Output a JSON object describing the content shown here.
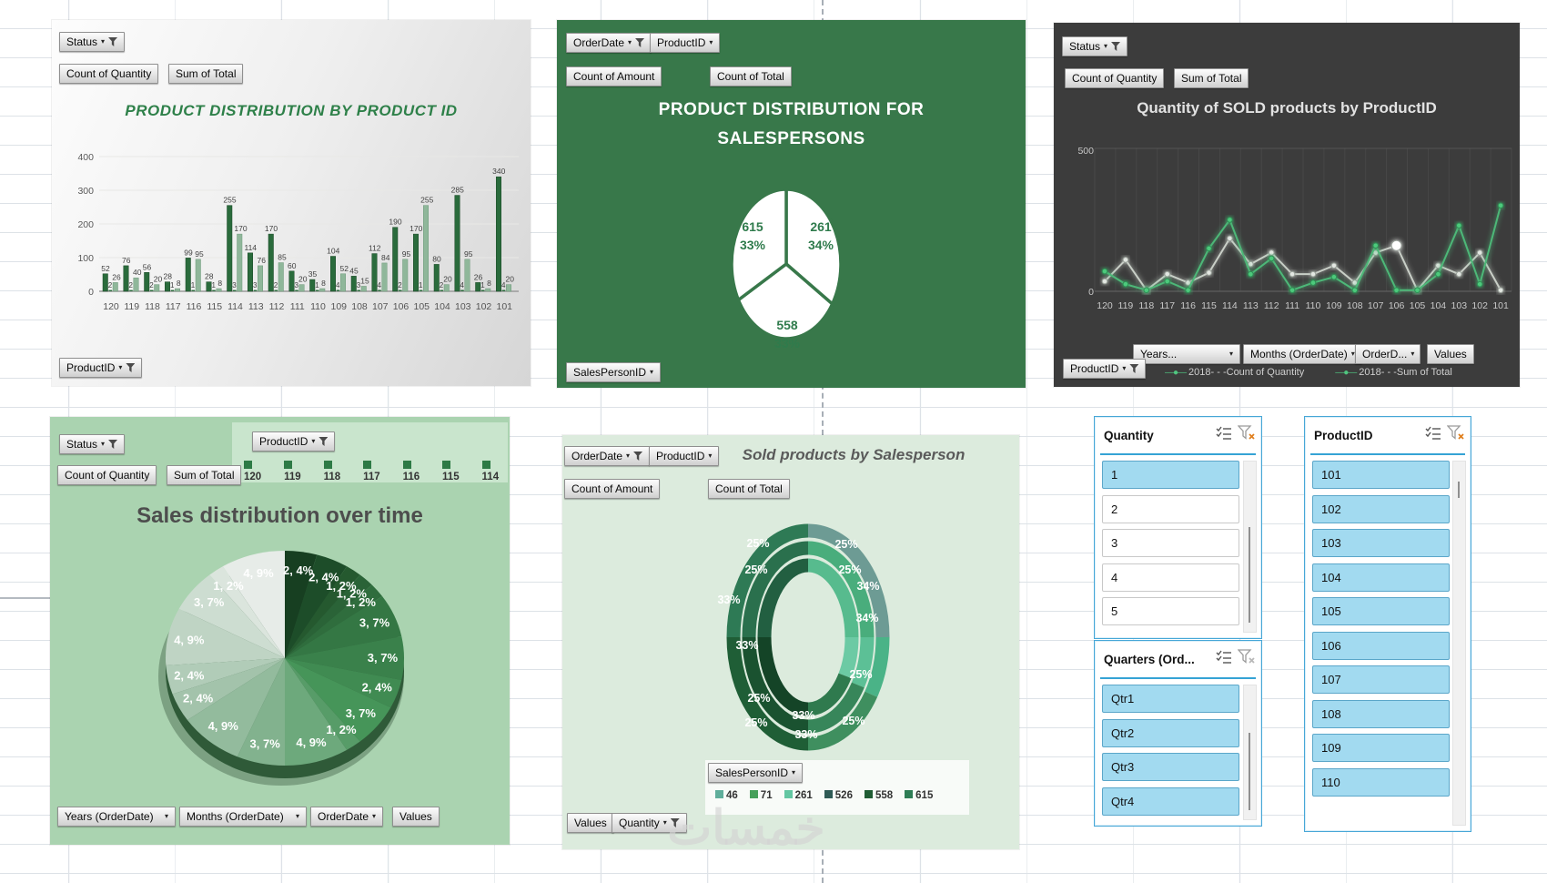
{
  "watermark": "خمسات",
  "charts": {
    "bar": {
      "filter_button": "Status",
      "value_buttons": [
        "Count of Quantity",
        "Sum of Total"
      ],
      "axis_button": "ProductID",
      "title": "PRODUCT DISTRIBUTION BY PRODUCT ID"
    },
    "pie_sales": {
      "filter_buttons": [
        "OrderDate",
        "ProductID"
      ],
      "value_buttons": [
        "Count of Amount",
        "Count of Total"
      ],
      "title_line1": "PRODUCT DISTRIBUTION FOR",
      "title_line2": "SALESPERSONS",
      "axis_button": "SalesPersonID"
    },
    "line": {
      "filter_button": "Status",
      "value_buttons": [
        "Count of Quantity",
        "Sum of Total"
      ],
      "title": "Quantity of SOLD products by ProductID",
      "field_buttons": [
        "Years...",
        "Months (OrderDate)",
        "OrderD...",
        "Values"
      ],
      "axis_button": "ProductID",
      "legend": [
        "2018- - -Count of Quantity",
        "2018- - -Sum of Total"
      ]
    },
    "pie_time": {
      "filter_button": "Status",
      "value_buttons": [
        "Count of Quantity",
        "Sum of Total"
      ],
      "legend_button": "ProductID",
      "legend_items": [
        "120",
        "119",
        "118",
        "117",
        "116",
        "115",
        "114"
      ],
      "legend_color": "#2d7a45",
      "title": "Sales distribution over time",
      "field_buttons": [
        "Years (OrderDate)",
        "Months (OrderDate)",
        "OrderDate",
        "Values"
      ]
    },
    "donut": {
      "filter_buttons": [
        "OrderDate",
        "ProductID"
      ],
      "value_buttons": [
        "Count of Amount",
        "Count of Total"
      ],
      "title": "Sold products by Salesperson",
      "legend_button": "SalesPersonID",
      "bottom_buttons": [
        "Values",
        "Quantity"
      ]
    }
  },
  "chart_data": [
    {
      "id": "product-distribution-bar",
      "type": "bar",
      "title": "PRODUCT DISTRIBUTION BY PRODUCT ID",
      "categories": [
        "120",
        "119",
        "118",
        "117",
        "116",
        "115",
        "114",
        "113",
        "112",
        "111",
        "110",
        "109",
        "108",
        "107",
        "106",
        "105",
        "104",
        "103",
        "102",
        "101"
      ],
      "yticks": [
        0,
        100,
        200,
        300,
        400
      ],
      "ylim": [
        0,
        400
      ],
      "series": [
        {
          "name": "Sum of Total (dark)",
          "color": "#2a6b3c",
          "values": [
            52,
            76,
            56,
            28,
            99,
            28,
            255,
            114,
            170,
            60,
            35,
            104,
            45,
            112,
            190,
            170,
            80,
            285,
            26,
            340
          ]
        },
        {
          "name": "Sum of Total (light)",
          "color": "#8fb79a",
          "values": [
            26,
            40,
            20,
            8,
            95,
            8,
            170,
            76,
            85,
            20,
            8,
            52,
            15,
            84,
            95,
            255,
            20,
            95,
            8,
            20
          ]
        },
        {
          "name": "Count of Quantity",
          "color": "#2a6b3c",
          "values": [
            2,
            2,
            2,
            1,
            1,
            1,
            3,
            3,
            2,
            3,
            1,
            4,
            3,
            4,
            2,
            1,
            2,
            4,
            1,
            4
          ]
        }
      ]
    },
    {
      "id": "salespersons-pie",
      "type": "pie",
      "title": "PRODUCT DISTRIBUTION FOR SALESPERSONS",
      "slices": [
        {
          "value": "261",
          "pct": "34%",
          "x": 290,
          "y": 232
        },
        {
          "value": "558",
          "pct": "33%",
          "x": 253,
          "y": 340
        },
        {
          "value": "615",
          "pct": "33%",
          "x": 215,
          "y": 232
        }
      ],
      "fractions": [
        0.34,
        0.33,
        0.33
      ],
      "fill": "#ffffff",
      "label_color": "#2f7b4c"
    },
    {
      "id": "sold-quantity-line",
      "type": "line",
      "title": "Quantity of SOLD products by ProductID",
      "categories": [
        "120",
        "119",
        "118",
        "117",
        "116",
        "115",
        "114",
        "113",
        "112",
        "111",
        "110",
        "109",
        "108",
        "107",
        "106",
        "105",
        "104",
        "103",
        "102",
        "101"
      ],
      "ylim": [
        0,
        500
      ],
      "yticks": [
        0,
        500
      ],
      "series": [
        {
          "name": "2018- - -Count of Quantity",
          "color": "#4db878",
          "values": [
            70,
            25,
            4,
            35,
            4,
            150,
            250,
            60,
            115,
            4,
            30,
            50,
            4,
            160,
            4,
            4,
            60,
            230,
            25,
            300
          ]
        },
        {
          "name": "2018- - -Sum of Total",
          "color": "#c9cfc7",
          "values": [
            35,
            110,
            4,
            60,
            30,
            65,
            185,
            95,
            135,
            60,
            60,
            90,
            30,
            135,
            160,
            4,
            90,
            60,
            135,
            4
          ]
        }
      ],
      "highlight_index": 14
    },
    {
      "id": "sales-over-time-pie",
      "type": "pie",
      "title": "Sales distribution over time",
      "total": 46,
      "slices": [
        {
          "label": "2, 4%",
          "value": 2,
          "color": "#173f21"
        },
        {
          "label": "2, 4%",
          "value": 2,
          "color": "#1d4d29"
        },
        {
          "label": "1, 2%",
          "value": 1,
          "color": "#25592f"
        },
        {
          "label": "1, 2%",
          "value": 1,
          "color": "#2a6337"
        },
        {
          "label": "1, 2%",
          "value": 1,
          "color": "#2f6d3d"
        },
        {
          "label": "3, 7%",
          "value": 3,
          "color": "#347744"
        },
        {
          "label": "3, 7%",
          "value": 3,
          "color": "#3a814b"
        },
        {
          "label": "2, 4%",
          "value": 2,
          "color": "#408b52"
        },
        {
          "label": "3, 7%",
          "value": 3,
          "color": "#469559"
        },
        {
          "label": "1, 2%",
          "value": 1,
          "color": "#579c68"
        },
        {
          "label": "4, 9%",
          "value": 4,
          "color": "#6da97c"
        },
        {
          "label": "3, 7%",
          "value": 3,
          "color": "#82b28e"
        },
        {
          "label": "4, 9%",
          "value": 4,
          "color": "#93bb9d"
        },
        {
          "label": "2, 4%",
          "value": 2,
          "color": "#a3c3ab"
        },
        {
          "label": "2, 4%",
          "value": 2,
          "color": "#b1ccb8"
        },
        {
          "label": "4, 9%",
          "value": 4,
          "color": "#bfd4c4"
        },
        {
          "label": "3, 7%",
          "value": 3,
          "color": "#cdddd1"
        },
        {
          "label": "1, 2%",
          "value": 1,
          "color": "#dbe5dd"
        },
        {
          "label": "4, 9%",
          "value": 4,
          "color": "#e7ece8"
        }
      ]
    },
    {
      "id": "sold-by-salesperson-donut",
      "type": "doughnut",
      "title": "Sold products by Salesperson",
      "legend": [
        {
          "label": "46",
          "color": "#5fae9b"
        },
        {
          "label": "71",
          "color": "#46a05a"
        },
        {
          "label": "261",
          "color": "#63c6a2"
        },
        {
          "label": "526",
          "color": "#2e5a55"
        },
        {
          "label": "558",
          "color": "#1f5c33"
        },
        {
          "label": "615",
          "color": "#2e7d55"
        }
      ],
      "rings": [
        {
          "segments": [
            {
              "pct": 25,
              "color": "#6d9b94"
            },
            {
              "pct": 9,
              "color": "#4ab387"
            },
            {
              "pct": 16,
              "color": "#3f8f5f"
            },
            {
              "pct": 25,
              "color": "#1f5e36"
            },
            {
              "pct": 25,
              "color": "#2e7a55"
            }
          ]
        },
        {
          "segments": [
            {
              "pct": 25,
              "color": "#49ad7c"
            },
            {
              "pct": 9,
              "color": "#5cc096"
            },
            {
              "pct": 16,
              "color": "#37865a"
            },
            {
              "pct": 25,
              "color": "#1a5230"
            },
            {
              "pct": 25,
              "color": "#2a704d"
            }
          ]
        },
        {
          "segments": [
            {
              "pct": 25,
              "color": "#57bb8e"
            },
            {
              "pct": 9,
              "color": "#6ccaa4"
            },
            {
              "pct": 16,
              "color": "#2f7a4e"
            },
            {
              "pct": 25,
              "color": "#144427"
            },
            {
              "pct": 25,
              "color": "#225f41"
            }
          ]
        }
      ],
      "ring_labels": [
        {
          "t": "25%",
          "x": 312,
          "y": 124
        },
        {
          "t": "25%",
          "x": 316,
          "y": 152
        },
        {
          "t": "34%",
          "x": 336,
          "y": 170
        },
        {
          "t": "34%",
          "x": 335,
          "y": 205
        },
        {
          "t": "25%",
          "x": 328,
          "y": 267
        },
        {
          "t": "25%",
          "x": 320,
          "y": 318
        },
        {
          "t": "33%",
          "x": 265,
          "y": 312
        },
        {
          "t": "33%",
          "x": 268,
          "y": 333
        },
        {
          "t": "25%",
          "x": 216,
          "y": 293
        },
        {
          "t": "25%",
          "x": 213,
          "y": 320
        },
        {
          "t": "33%",
          "x": 203,
          "y": 235
        },
        {
          "t": "33%",
          "x": 183,
          "y": 185
        },
        {
          "t": "25%",
          "x": 213,
          "y": 152
        },
        {
          "t": "25%",
          "x": 215,
          "y": 123
        }
      ]
    }
  ],
  "slicers": [
    {
      "title": "Quantity",
      "filter_active": true,
      "items": [
        {
          "label": "1",
          "selected": true
        },
        {
          "label": "2",
          "selected": false
        },
        {
          "label": "3",
          "selected": false
        },
        {
          "label": "4",
          "selected": false
        },
        {
          "label": "5",
          "selected": false
        }
      ],
      "thumb": [
        72,
        105
      ]
    },
    {
      "title": "Quarters (Ord...",
      "filter_active": false,
      "items": [
        {
          "label": "Qtr1",
          "selected": true
        },
        {
          "label": "Qtr2",
          "selected": true
        },
        {
          "label": "Qtr3",
          "selected": true
        },
        {
          "label": "Qtr4",
          "selected": true
        }
      ],
      "thumb": [
        52,
        85
      ]
    },
    {
      "title": "ProductID",
      "filter_active": true,
      "items": [
        {
          "label": "101",
          "selected": true
        },
        {
          "label": "102",
          "selected": true
        },
        {
          "label": "103",
          "selected": true
        },
        {
          "label": "104",
          "selected": true
        },
        {
          "label": "105",
          "selected": true
        },
        {
          "label": "106",
          "selected": true
        },
        {
          "label": "107",
          "selected": true
        },
        {
          "label": "108",
          "selected": true
        },
        {
          "label": "109",
          "selected": true
        },
        {
          "label": "110",
          "selected": true
        }
      ],
      "thumb": [
        22,
        18
      ]
    }
  ]
}
